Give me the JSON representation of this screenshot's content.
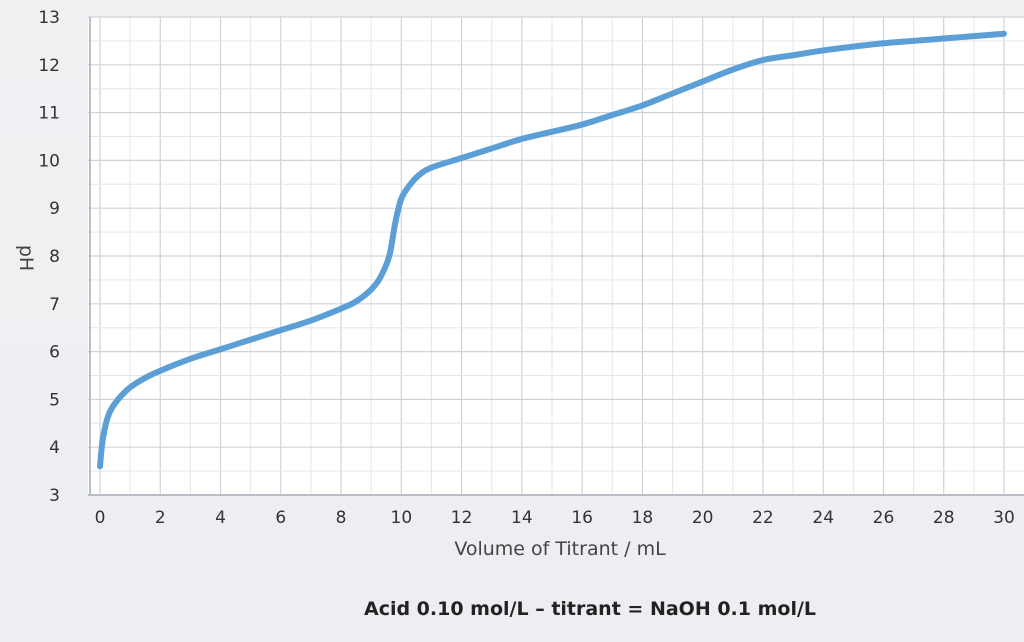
{
  "chart_data": {
    "type": "line",
    "xlabel": "Volume of Titrant / mL",
    "ylabel": "pH",
    "caption": "Acid 0.10 mol/L – titrant = NaOH 0.1 mol/L",
    "xlim": [
      0,
      30
    ],
    "ylim": [
      3,
      13
    ],
    "x_ticks": [
      0,
      2,
      4,
      6,
      8,
      10,
      12,
      14,
      16,
      18,
      20,
      22,
      24,
      26,
      28,
      30
    ],
    "y_ticks": [
      3,
      4,
      5,
      6,
      7,
      8,
      9,
      10,
      11,
      12,
      13
    ],
    "grid": true,
    "line_color": "#5b9fd6",
    "series": [
      {
        "x": [
          0,
          0.1,
          0.3,
          0.6,
          1.0,
          1.5,
          2,
          3,
          4,
          5,
          6,
          7,
          8,
          8.5,
          9,
          9.3,
          9.6,
          9.8,
          10.0,
          10.3,
          10.6,
          11,
          12,
          13,
          14,
          15,
          16,
          17,
          18,
          19,
          20,
          21,
          22,
          23,
          24,
          25,
          26,
          27,
          28,
          29,
          30
        ],
        "y": [
          3.6,
          4.2,
          4.7,
          5.0,
          5.25,
          5.45,
          5.6,
          5.85,
          6.05,
          6.25,
          6.45,
          6.65,
          6.9,
          7.05,
          7.3,
          7.55,
          8.0,
          8.7,
          9.2,
          9.5,
          9.7,
          9.85,
          10.05,
          10.25,
          10.45,
          10.6,
          10.75,
          10.95,
          11.15,
          11.4,
          11.65,
          11.9,
          12.1,
          12.2,
          12.3,
          12.38,
          12.45,
          12.5,
          12.55,
          12.6,
          12.65
        ]
      }
    ]
  }
}
